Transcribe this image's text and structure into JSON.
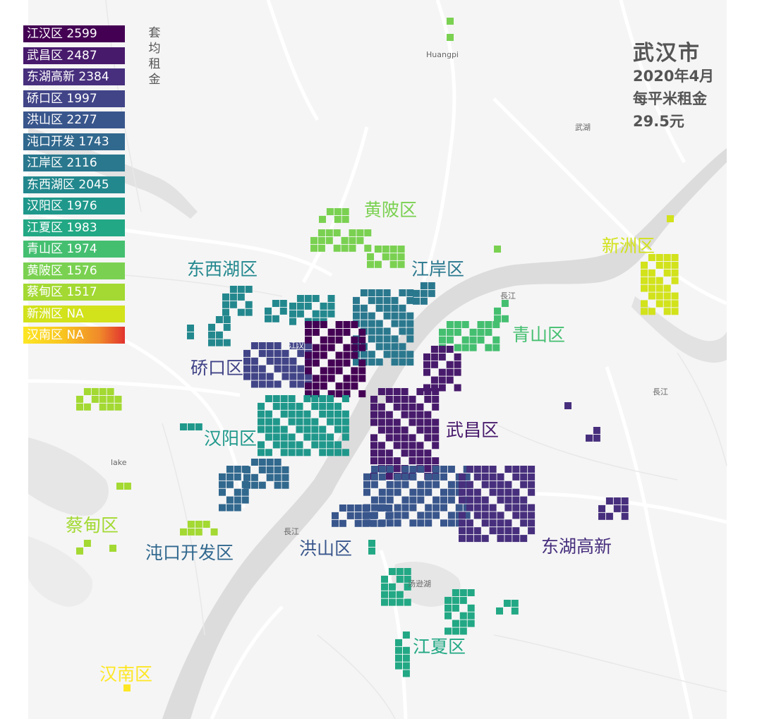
{
  "title": {
    "city": "武汉市",
    "date": "2020年4月",
    "rent_label": "每平米租金",
    "rent_value": "29.5元"
  },
  "legend": {
    "title": "套均租金",
    "items": [
      {
        "label": "江汉区 2599",
        "color": "#440154"
      },
      {
        "label": "武昌区 2487",
        "color": "#481a6c"
      },
      {
        "label": "东湖高新 2384",
        "color": "#472f7d"
      },
      {
        "label": "硚口区 1997",
        "color": "#414487"
      },
      {
        "label": "洪山区 2277",
        "color": "#39568c"
      },
      {
        "label": "沌口开发 1743",
        "color": "#31688e"
      },
      {
        "label": "江岸区 2116",
        "color": "#2a788e"
      },
      {
        "label": "东西湖区 2045",
        "color": "#23888e"
      },
      {
        "label": "汉阳区 1976",
        "color": "#1f988b"
      },
      {
        "label": "江夏区 1983",
        "color": "#22a884"
      },
      {
        "label": "青山区 1974",
        "color": "#44bf70"
      },
      {
        "label": "黄陂区 1576",
        "color": "#7ad151"
      },
      {
        "label": "蔡甸区 1517",
        "color": "#a3d932"
      },
      {
        "label": "新洲区 NA",
        "color": "#d2e21b"
      },
      {
        "label": "汉南区 NA",
        "color": "gradient"
      }
    ]
  },
  "districts": {
    "huangpi": {
      "name": "黄陂区",
      "color": "#7ad151"
    },
    "dongxihu": {
      "name": "东西湖区",
      "color": "#23888e"
    },
    "jiangan": {
      "name": "江岸区",
      "color": "#2a788e"
    },
    "xinzhou": {
      "name": "新洲区",
      "color": "#d2e21b"
    },
    "qingshan": {
      "name": "青山区",
      "color": "#44bf70"
    },
    "qiaokou": {
      "name": "硚口区",
      "color": "#414487"
    },
    "wuchang": {
      "name": "武昌区",
      "color": "#481a6c"
    },
    "hanyang": {
      "name": "汉阳区",
      "color": "#1f988b"
    },
    "caidian": {
      "name": "蔡甸区",
      "color": "#a3d932"
    },
    "zhuankou": {
      "name": "沌口开发区",
      "color": "#31688e"
    },
    "hongshan": {
      "name": "洪山区",
      "color": "#39568c"
    },
    "donghu": {
      "name": "东湖高新",
      "color": "#472f7d"
    },
    "jiangxia": {
      "name": "江夏区",
      "color": "#22a884"
    },
    "hannan": {
      "name": "汉南区",
      "color": "#fde725"
    }
  },
  "basemap_labels": {
    "huangpi": "Huangpi",
    "wuhu": "武湖",
    "changjiang_1": "長江",
    "changjiang_2": "長江",
    "changjiang_3": "長江",
    "jianghan_small": "江汉",
    "lake": "lake",
    "tangxunhu": "汤逊湖"
  }
}
